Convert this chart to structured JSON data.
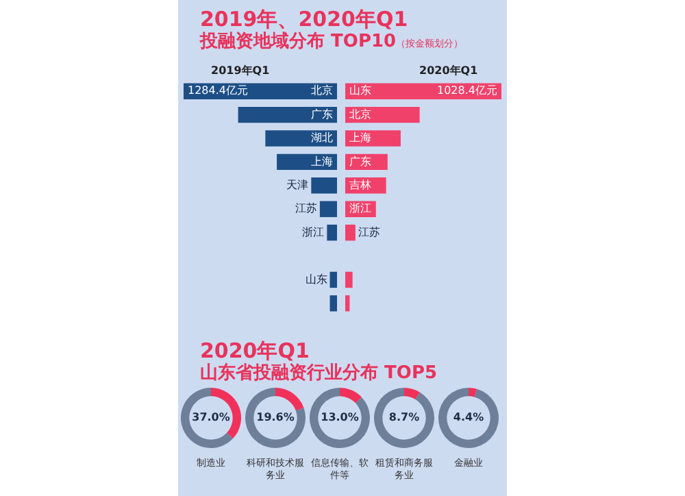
{
  "chart_data": [
    {
      "type": "other",
      "title": "2019年、2020年Q1",
      "subtitle": "投融资地域分布 TOP10",
      "annotations": [
        "（按金额划分）"
      ]
    },
    {
      "type": "bar",
      "orientation": "horizontal",
      "title": "2019年Q1",
      "categories": [
        "北京",
        "广东",
        "湖北",
        "上海",
        "天津",
        "江苏",
        "浙江",
        null,
        "山东",
        null
      ],
      "values": [
        1284.4,
        828,
        600,
        504,
        216,
        144,
        84,
        null,
        60,
        60
      ],
      "color": "#1d4f86",
      "value_labels": [
        "1284.4亿元",
        null,
        null,
        null,
        null,
        null,
        null,
        null,
        null,
        null
      ],
      "xlim": [
        1284.4,
        0
      ],
      "tick_labels": false
    },
    {
      "type": "bar",
      "orientation": "horizontal",
      "title": "2020年Q1",
      "categories": [
        "山东",
        "北京",
        "上海",
        "广东",
        "吉林",
        "浙江",
        "江苏",
        null,
        null,
        null
      ],
      "values": [
        1028.4,
        490,
        365,
        279,
        269,
        202,
        67,
        null,
        48,
        29
      ],
      "color": "#f0416b",
      "value_labels": [
        "1028.4亿元",
        null,
        null,
        null,
        null,
        null,
        null,
        null,
        null,
        null
      ],
      "xlim": [
        0,
        1028.4
      ],
      "tick_labels": false
    },
    {
      "type": "other",
      "title": "2020年Q1",
      "subtitle": "山东省投融资行业分布 TOP5"
    },
    {
      "type": "donut",
      "xlabel": "制造业",
      "categories": [
        null,
        null
      ],
      "values": [
        37.0,
        63.0
      ],
      "colors": [
        "#f0325a",
        "#6d7f99"
      ],
      "value_labels": [
        "37.0%",
        null
      ]
    },
    {
      "type": "donut",
      "xlabel": "科研和技术服务业",
      "categories": [
        null,
        null
      ],
      "values": [
        19.6,
        80.4
      ],
      "colors": [
        "#f0325a",
        "#6d7f99"
      ],
      "value_labels": [
        "19.6%",
        null
      ]
    },
    {
      "type": "donut",
      "xlabel": "信息传输、软件等",
      "categories": [
        null,
        null
      ],
      "values": [
        13.0,
        87.0
      ],
      "colors": [
        "#f0325a",
        "#6d7f99"
      ],
      "value_labels": [
        "13.0%",
        null
      ]
    },
    {
      "type": "donut",
      "xlabel": "租赁和商务服务业",
      "categories": [
        null,
        null
      ],
      "values": [
        8.7,
        91.3
      ],
      "colors": [
        "#f0325a",
        "#6d7f99"
      ],
      "value_labels": [
        "8.7%",
        null
      ]
    },
    {
      "type": "donut",
      "xlabel": "金融业",
      "categories": [
        null,
        null
      ],
      "values": [
        4.4,
        95.6
      ],
      "colors": [
        "#f0325a",
        "#6d7f99"
      ],
      "value_labels": [
        "4.4%",
        null
      ]
    }
  ]
}
